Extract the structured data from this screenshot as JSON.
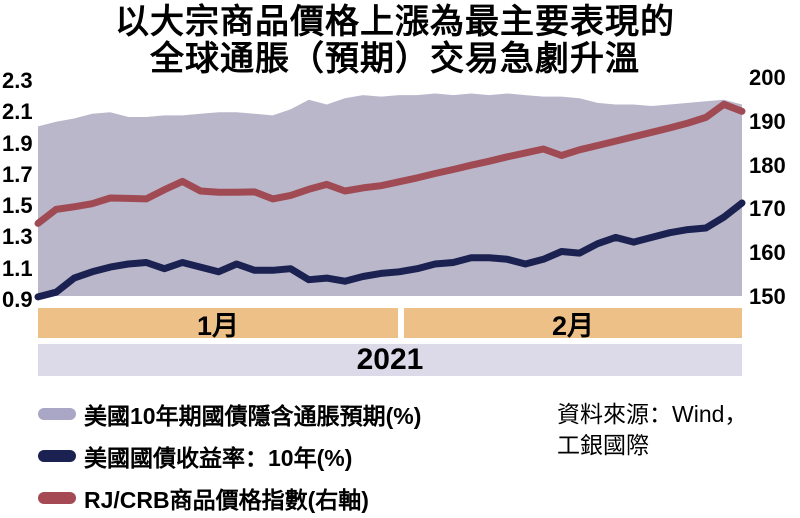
{
  "title": {
    "line1": "以大宗商品價格上漲為最主要表現的",
    "line2": "全球通脹（預期）交易急劇升溫"
  },
  "axes": {
    "left_ticks": [
      "2.3",
      "2.1",
      "1.9",
      "1.7",
      "1.5",
      "1.3",
      "1.1",
      "0.9"
    ],
    "right_ticks": [
      "200",
      "190",
      "180",
      "170",
      "160",
      "150"
    ]
  },
  "x_bands": {
    "month1": "1月",
    "month2": "2月",
    "year": "2021"
  },
  "chart_data": {
    "type": "line",
    "title": "以大宗商品價格上漲為最主要表現的全球通脹（預期）交易急劇升溫",
    "x": {
      "period": "2021年1月–2月",
      "groups": [
        "1月",
        "2月"
      ],
      "points": 40
    },
    "left_axis": {
      "range": [
        0.9,
        2.3
      ],
      "ticks": [
        2.3,
        2.1,
        1.9,
        1.7,
        1.5,
        1.3,
        1.1,
        0.9
      ]
    },
    "right_axis": {
      "range": [
        150,
        200
      ],
      "ticks": [
        200,
        190,
        180,
        170,
        160,
        150
      ]
    },
    "grid": false,
    "legend_position": "bottom-left",
    "series": [
      {
        "name": "美國10年期國債隱含通脹預期(%)",
        "type": "area",
        "axis": "left",
        "color": "#bab7ca",
        "values": [
          2.01,
          2.04,
          2.06,
          2.09,
          2.1,
          2.07,
          2.07,
          2.08,
          2.08,
          2.09,
          2.1,
          2.1,
          2.09,
          2.08,
          2.12,
          2.18,
          2.15,
          2.19,
          2.21,
          2.2,
          2.21,
          2.21,
          2.22,
          2.21,
          2.22,
          2.21,
          2.22,
          2.21,
          2.2,
          2.2,
          2.19,
          2.16,
          2.15,
          2.15,
          2.14,
          2.15,
          2.16,
          2.17,
          2.18,
          2.15
        ]
      },
      {
        "name": "美國國債收益率：10年(%)",
        "type": "line",
        "axis": "left",
        "color": "#1b2150",
        "values": [
          0.92,
          0.95,
          1.04,
          1.08,
          1.11,
          1.13,
          1.14,
          1.1,
          1.14,
          1.11,
          1.08,
          1.13,
          1.09,
          1.09,
          1.1,
          1.03,
          1.04,
          1.02,
          1.05,
          1.07,
          1.08,
          1.1,
          1.13,
          1.14,
          1.17,
          1.17,
          1.16,
          1.13,
          1.16,
          1.21,
          1.2,
          1.26,
          1.3,
          1.27,
          1.3,
          1.33,
          1.35,
          1.36,
          1.43,
          1.52
        ]
      },
      {
        "name": "RJ/CRB商品價格指數(右軸)",
        "type": "line",
        "axis": "right",
        "color": "#a04a54",
        "values": [
          166.8,
          170.0,
          170.6,
          171.3,
          172.6,
          172.5,
          172.4,
          174.5,
          176.4,
          174.2,
          173.9,
          173.9,
          174.0,
          172.4,
          173.2,
          174.6,
          175.7,
          174.2,
          174.9,
          175.4,
          176.3,
          177.2,
          178.2,
          179.1,
          180.1,
          181.0,
          182.0,
          182.9,
          183.8,
          182.3,
          183.6,
          184.6,
          185.6,
          186.6,
          187.6,
          188.6,
          189.7,
          191.0,
          194.0,
          192.4
        ]
      }
    ]
  },
  "legend": {
    "items": [
      {
        "label": "美國10年期國債隱含通脹預期(%)",
        "swatch_color": "#a9a6c6"
      },
      {
        "label": "美國國債收益率：10年(%)",
        "swatch_color": "#1b2150"
      },
      {
        "label": "RJ/CRB商品價格指數(右軸)",
        "swatch_color": "#a54a54"
      }
    ]
  },
  "source": {
    "line1": "資料來源：Wind，",
    "line2": "工銀國際"
  },
  "colors": {
    "band_fill": "#bab7ca",
    "yield_line": "#1b2150",
    "crb_line": "#a04a54",
    "month_band": "#edc088",
    "year_band": "#dcdae8",
    "text": "#000000",
    "background": "#ffffff"
  }
}
